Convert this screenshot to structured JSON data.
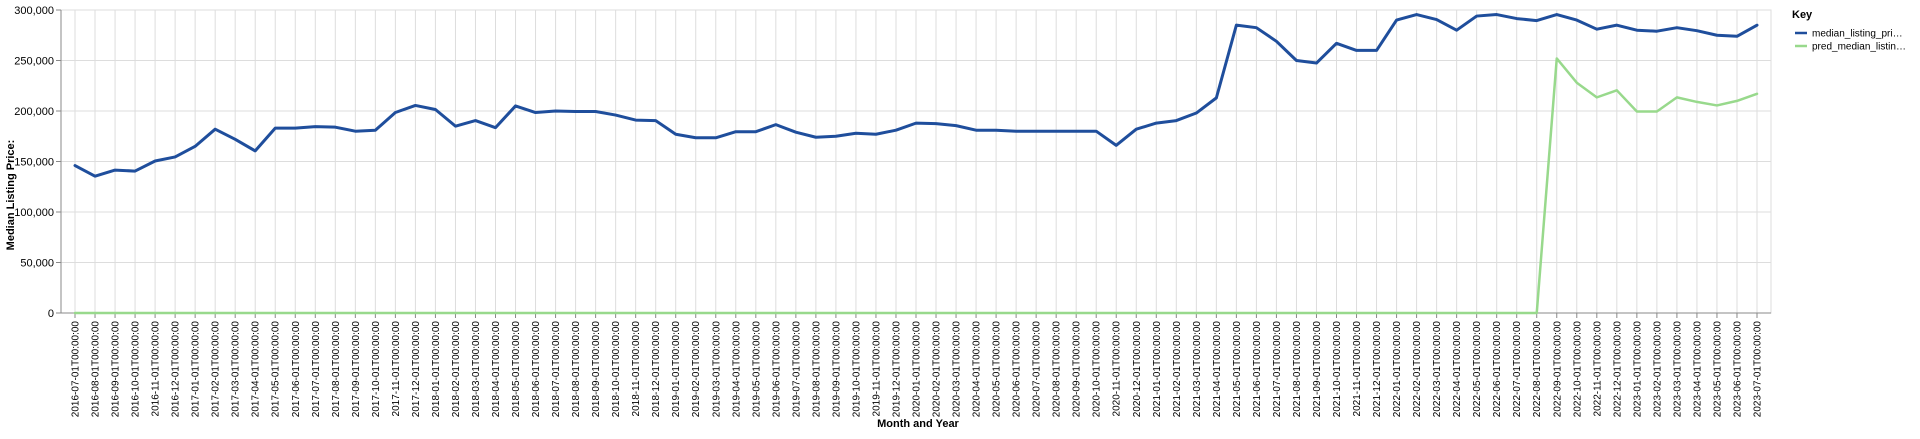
{
  "chart_data": {
    "type": "line",
    "xlabel": "Month and Year",
    "ylabel": "Median Listing Price:",
    "ylim": [
      0,
      300000
    ],
    "y_ticks": [
      "0",
      "50,000",
      "100,000",
      "150,000",
      "200,000",
      "250,000",
      "300,000"
    ],
    "grid": true,
    "legend_title": "Key",
    "legend_position": "right",
    "x": [
      "2016-07-01T00:00:00",
      "2016-08-01T00:00:00",
      "2016-09-01T00:00:00",
      "2016-10-01T00:00:00",
      "2016-11-01T00:00:00",
      "2016-12-01T00:00:00",
      "2017-01-01T00:00:00",
      "2017-02-01T00:00:00",
      "2017-03-01T00:00:00",
      "2017-04-01T00:00:00",
      "2017-05-01T00:00:00",
      "2017-06-01T00:00:00",
      "2017-07-01T00:00:00",
      "2017-08-01T00:00:00",
      "2017-09-01T00:00:00",
      "2017-10-01T00:00:00",
      "2017-11-01T00:00:00",
      "2017-12-01T00:00:00",
      "2018-01-01T00:00:00",
      "2018-02-01T00:00:00",
      "2018-03-01T00:00:00",
      "2018-04-01T00:00:00",
      "2018-05-01T00:00:00",
      "2018-06-01T00:00:00",
      "2018-07-01T00:00:00",
      "2018-08-01T00:00:00",
      "2018-09-01T00:00:00",
      "2018-10-01T00:00:00",
      "2018-11-01T00:00:00",
      "2018-12-01T00:00:00",
      "2019-01-01T00:00:00",
      "2019-02-01T00:00:00",
      "2019-03-01T00:00:00",
      "2019-04-01T00:00:00",
      "2019-05-01T00:00:00",
      "2019-06-01T00:00:00",
      "2019-07-01T00:00:00",
      "2019-08-01T00:00:00",
      "2019-09-01T00:00:00",
      "2019-10-01T00:00:00",
      "2019-11-01T00:00:00",
      "2019-12-01T00:00:00",
      "2020-01-01T00:00:00",
      "2020-02-01T00:00:00",
      "2020-03-01T00:00:00",
      "2020-04-01T00:00:00",
      "2020-05-01T00:00:00",
      "2020-06-01T00:00:00",
      "2020-07-01T00:00:00",
      "2020-08-01T00:00:00",
      "2020-09-01T00:00:00",
      "2020-10-01T00:00:00",
      "2020-11-01T00:00:00",
      "2020-12-01T00:00:00",
      "2021-01-01T00:00:00",
      "2021-02-01T00:00:00",
      "2021-03-01T00:00:00",
      "2021-04-01T00:00:00",
      "2021-05-01T00:00:00",
      "2021-06-01T00:00:00",
      "2021-07-01T00:00:00",
      "2021-08-01T00:00:00",
      "2021-09-01T00:00:00",
      "2021-10-01T00:00:00",
      "2021-11-01T00:00:00",
      "2021-12-01T00:00:00",
      "2022-01-01T00:00:00",
      "2022-02-01T00:00:00",
      "2022-03-01T00:00:00",
      "2022-04-01T00:00:00",
      "2022-05-01T00:00:00",
      "2022-06-01T00:00:00",
      "2022-07-01T00:00:00",
      "2022-08-01T00:00:00",
      "2022-09-01T00:00:00",
      "2022-10-01T00:00:00",
      "2022-11-01T00:00:00",
      "2022-12-01T00:00:00",
      "2023-01-01T00:00:00",
      "2023-02-01T00:00:00",
      "2023-03-01T00:00:00",
      "2023-04-01T00:00:00",
      "2023-05-01T00:00:00",
      "2023-06-01T00:00:00",
      "2023-07-01T00:00:00"
    ],
    "series": [
      {
        "name": "median_listing_pri…",
        "color": "#1f4e9c",
        "values": [
          146000,
          135500,
          141500,
          140500,
          150500,
          154500,
          165000,
          182000,
          172000,
          160500,
          183000,
          183000,
          184500,
          184000,
          180000,
          181000,
          198500,
          205500,
          201500,
          185000,
          190500,
          183500,
          205000,
          198500,
          200000,
          199500,
          199500,
          196000,
          191000,
          190500,
          177000,
          173500,
          173500,
          179500,
          179500,
          186500,
          179000,
          174000,
          175000,
          178000,
          177000,
          181000,
          188000,
          187500,
          185500,
          181000,
          181000,
          180000,
          180000,
          180000,
          180000,
          180000,
          166000,
          182000,
          188000,
          190500,
          198000,
          213000,
          285000,
          282500,
          269000,
          250000,
          247500,
          267000,
          260000,
          260000,
          290000,
          295500,
          290500,
          280000,
          294000,
          295500,
          291500,
          289500,
          295500,
          290000,
          281000,
          285000,
          280000,
          279000,
          282500,
          279500,
          275000,
          274000,
          285000
        ]
      },
      {
        "name": "pred_median_listin…",
        "color": "#98d98c",
        "values": [
          0,
          0,
          0,
          0,
          0,
          0,
          0,
          0,
          0,
          0,
          0,
          0,
          0,
          0,
          0,
          0,
          0,
          0,
          0,
          0,
          0,
          0,
          0,
          0,
          0,
          0,
          0,
          0,
          0,
          0,
          0,
          0,
          0,
          0,
          0,
          0,
          0,
          0,
          0,
          0,
          0,
          0,
          0,
          0,
          0,
          0,
          0,
          0,
          0,
          0,
          0,
          0,
          0,
          0,
          0,
          0,
          0,
          0,
          0,
          0,
          0,
          0,
          0,
          0,
          0,
          0,
          0,
          0,
          0,
          0,
          0,
          0,
          0,
          0,
          252000,
          228000,
          213500,
          220500,
          199500,
          199500,
          213500,
          209000,
          205500,
          210000,
          217000
        ]
      }
    ]
  }
}
